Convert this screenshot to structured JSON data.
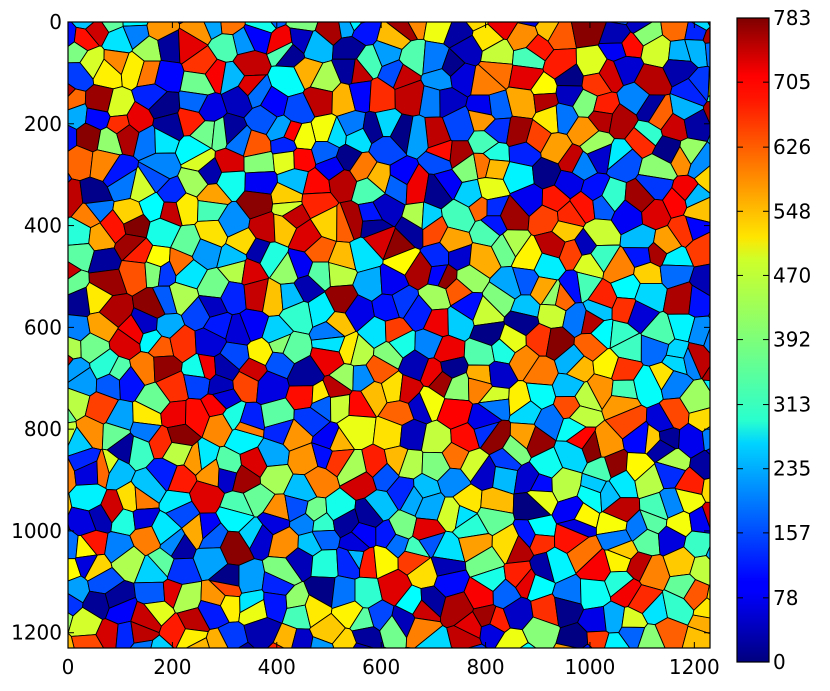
{
  "chart_data": {
    "type": "heatmap",
    "title": "",
    "xlabel": "",
    "ylabel": "",
    "description": "Label image of segmented cells (Voronoi-like grain map) colored by cell label with jet colormap",
    "image_extent": {
      "x": [
        0,
        1230
      ],
      "y": [
        0,
        1230
      ]
    },
    "y_inverted": true,
    "grid": false,
    "cell_outline_color": "#000000",
    "colormap": "jet",
    "x_ticks": [
      {
        "value": 0,
        "label": "0"
      },
      {
        "value": 200,
        "label": "200"
      },
      {
        "value": 400,
        "label": "400"
      },
      {
        "value": 600,
        "label": "600"
      },
      {
        "value": 800,
        "label": "800"
      },
      {
        "value": 1000,
        "label": "1000"
      },
      {
        "value": 1200,
        "label": "1200"
      }
    ],
    "y_ticks": [
      {
        "value": 0,
        "label": "0"
      },
      {
        "value": 200,
        "label": "200"
      },
      {
        "value": 400,
        "label": "400"
      },
      {
        "value": 600,
        "label": "600"
      },
      {
        "value": 800,
        "label": "800"
      },
      {
        "value": 1000,
        "label": "1000"
      },
      {
        "value": 1200,
        "label": "1200"
      }
    ],
    "colorbar": {
      "min": 0,
      "max": 783,
      "ticks": [
        {
          "value": 0,
          "label": "0"
        },
        {
          "value": 78,
          "label": "78"
        },
        {
          "value": 157,
          "label": "157"
        },
        {
          "value": 235,
          "label": "235"
        },
        {
          "value": 313,
          "label": "313"
        },
        {
          "value": 392,
          "label": "392"
        },
        {
          "value": 470,
          "label": "470"
        },
        {
          "value": 548,
          "label": "548"
        },
        {
          "value": 626,
          "label": "626"
        },
        {
          "value": 705,
          "label": "705"
        },
        {
          "value": 783,
          "label": "783"
        }
      ]
    }
  }
}
